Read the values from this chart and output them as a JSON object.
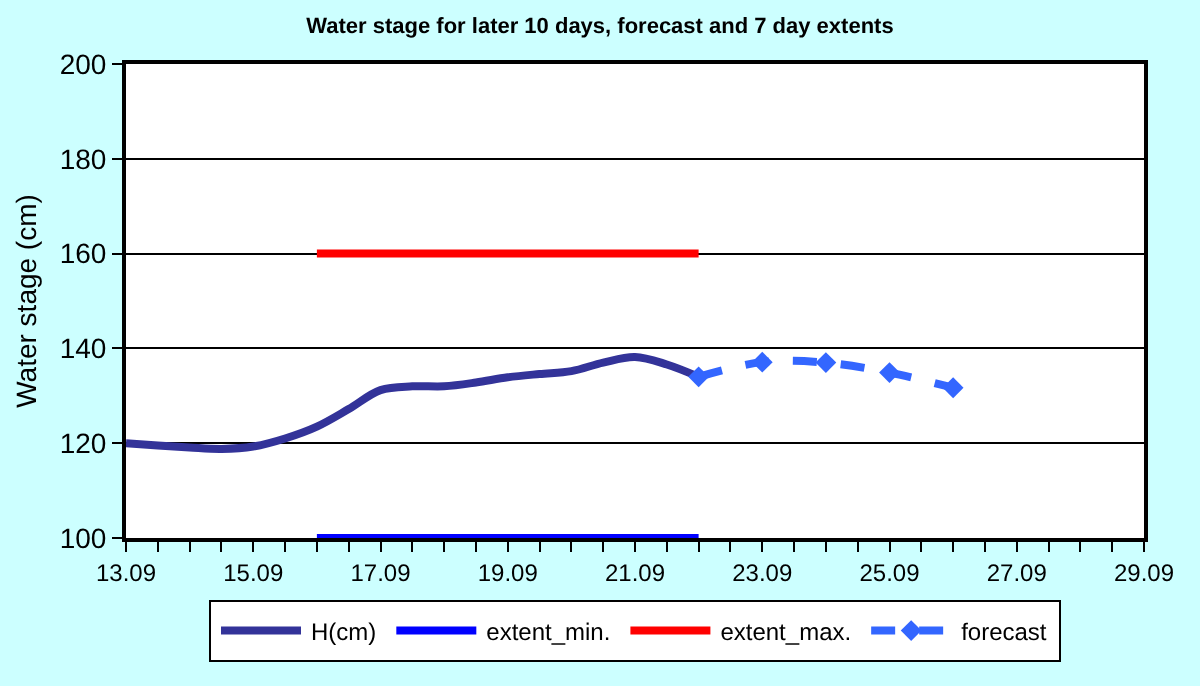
{
  "chart_data": {
    "type": "line",
    "title": "Water stage for later 10 days, forecast and 7 day extents",
    "ylabel": "Water stage (cm)",
    "xlim": [
      "--09-13",
      "--09-29"
    ],
    "ylim": [
      100,
      200
    ],
    "xticks": [
      {
        "value": "--09-13",
        "label": "13.09"
      },
      {
        "value": "--09-13T12:00",
        "label": null
      },
      {
        "value": "--09-14",
        "label": null
      },
      {
        "value": "--09-14T12:00",
        "label": null
      },
      {
        "value": "--09-15",
        "label": "15.09"
      },
      {
        "value": "--09-15T12:00",
        "label": null
      },
      {
        "value": "--09-16",
        "label": null
      },
      {
        "value": "--09-16T12:00",
        "label": null
      },
      {
        "value": "--09-17",
        "label": "17.09"
      },
      {
        "value": "--09-17T12:00",
        "label": null
      },
      {
        "value": "--09-18",
        "label": null
      },
      {
        "value": "--09-18T12:00",
        "label": null
      },
      {
        "value": "--09-19",
        "label": "19.09"
      },
      {
        "value": "--09-19T12:00",
        "label": null
      },
      {
        "value": "--09-20",
        "label": null
      },
      {
        "value": "--09-20T12:00",
        "label": null
      },
      {
        "value": "--09-21",
        "label": "21.09"
      },
      {
        "value": "--09-21T12:00",
        "label": null
      },
      {
        "value": "--09-22",
        "label": null
      },
      {
        "value": "--09-22T12:00",
        "label": null
      },
      {
        "value": "--09-23",
        "label": "23.09"
      },
      {
        "value": "--09-23T12:00",
        "label": null
      },
      {
        "value": "--09-24",
        "label": null
      },
      {
        "value": "--09-24T12:00",
        "label": null
      },
      {
        "value": "--09-25",
        "label": "25.09"
      },
      {
        "value": "--09-25T12:00",
        "label": null
      },
      {
        "value": "--09-26",
        "label": null
      },
      {
        "value": "--09-26T12:00",
        "label": null
      },
      {
        "value": "--09-27",
        "label": "27.09"
      },
      {
        "value": "--09-27T12:00",
        "label": null
      },
      {
        "value": "--09-28",
        "label": null
      },
      {
        "value": "--09-28T12:00",
        "label": null
      },
      {
        "value": "--09-29",
        "label": "29.09"
      }
    ],
    "yticks": [
      100,
      120,
      140,
      160,
      180,
      200
    ],
    "grid": "y",
    "legend": "bottom",
    "series": [
      {
        "name": "H(cm)",
        "color": "#333399",
        "marker": "none",
        "line_style": "solid",
        "x": [
          "--09-13",
          "--09-13T12:00",
          "--09-14",
          "--09-14T12:00",
          "--09-15",
          "--09-15T12:00",
          "--09-16",
          "--09-16T12:00",
          "--09-17",
          "--09-17T12:00",
          "--09-18",
          "--09-18T12:00",
          "--09-19",
          "--09-19T12:00",
          "--09-20",
          "--09-20T12:00",
          "--09-21",
          "--09-21T12:00",
          "--09-22"
        ],
        "values": [
          120,
          119.5,
          119.1,
          118.8,
          119.3,
          121,
          123.5,
          127.2,
          131.2,
          132,
          132,
          132.8,
          133.9,
          134.6,
          135.2,
          137,
          138.2,
          136.6,
          134
        ]
      },
      {
        "name": "extent_min.",
        "color": "#0000ff",
        "marker": "none",
        "line_style": "solid",
        "x": [
          "--09-16",
          "--09-22"
        ],
        "values": [
          100,
          100
        ]
      },
      {
        "name": "extent_max.",
        "color": "#ff0000",
        "marker": "none",
        "line_style": "solid",
        "x": [
          "--09-16",
          "--09-22"
        ],
        "values": [
          160,
          160
        ]
      },
      {
        "name": "forecast",
        "color": "#3366ff",
        "marker": "diamond",
        "line_style": "dashed",
        "x": [
          "--09-22",
          "--09-23",
          "--09-24",
          "--09-25",
          "--09-26"
        ],
        "values": [
          134,
          137.1,
          137,
          134.9,
          131.7
        ]
      }
    ]
  }
}
